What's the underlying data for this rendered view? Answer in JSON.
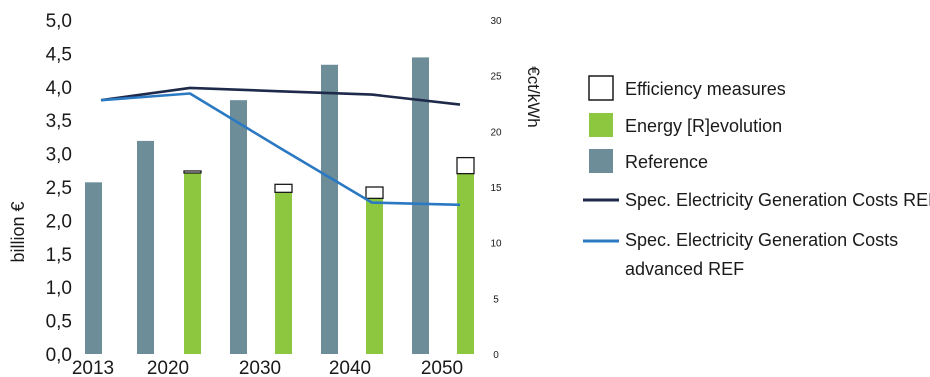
{
  "chart_data": {
    "type": "bar",
    "categories": [
      "2013",
      "2020",
      "2030",
      "2040",
      "2050"
    ],
    "left_axis": {
      "label": "billion €",
      "ylim": [
        0,
        5
      ],
      "ticks": [
        "0,0",
        "0,5",
        "1,0",
        "1,5",
        "2,0",
        "2,5",
        "3,0",
        "3,5",
        "4,0",
        "4,5",
        "5,0"
      ]
    },
    "right_axis": {
      "label": "€ct/kWh",
      "ylim": [
        0,
        30
      ],
      "ticks": [
        "0",
        "5",
        "10",
        "15",
        "20",
        "25",
        "30"
      ]
    },
    "bars": {
      "reference": {
        "name": "Reference",
        "color": "#6d8e98",
        "values": [
          2.57,
          3.19,
          3.8,
          4.33,
          4.44
        ]
      },
      "energy_revolution": {
        "name": "Energy [R]evolution",
        "color": "#8dc63f",
        "values": [
          null,
          2.71,
          2.42,
          2.33,
          2.7
        ]
      },
      "efficiency_measures": {
        "name": "Efficiency measures",
        "color": "#ffffff",
        "values": [
          null,
          0.03,
          0.12,
          0.17,
          0.24
        ]
      }
    },
    "lines": [
      {
        "name": "Spec. Electricity Generation Costs REF",
        "color": "#1e2a4a",
        "x": [
          "2013",
          "2020",
          "2030",
          "2040",
          "2050"
        ],
        "values": [
          22.8,
          23.9,
          23.6,
          23.3,
          22.4
        ]
      },
      {
        "name": "Spec. Electricity Generation Costs advanced REF",
        "color": "#2b79c2",
        "x": [
          "2013",
          "2020",
          "2030",
          "2040",
          "2050"
        ],
        "values": [
          22.8,
          23.4,
          18.5,
          13.6,
          13.4
        ]
      }
    ],
    "legend_placement": "right",
    "grid": false
  },
  "legend": [
    {
      "label": "Efficiency measures",
      "kind": "box-outline"
    },
    {
      "label": "Energy [R]evolution",
      "kind": "box-green"
    },
    {
      "label": "Reference",
      "kind": "box-grey"
    },
    {
      "label": "Spec. Electricity Generation Costs REF",
      "kind": "line-navy"
    },
    {
      "label_lines": [
        "Spec. Electricity Generation Costs",
        "advanced REF"
      ],
      "kind": "line-blue"
    }
  ]
}
